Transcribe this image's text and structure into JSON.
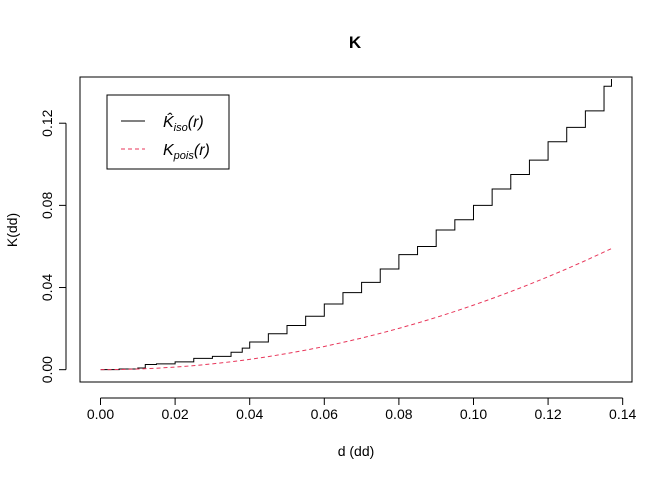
{
  "chart_data": {
    "type": "line",
    "title": "K",
    "xlabel": "d (dd)",
    "ylabel": "K(dd)",
    "xlim": [
      -0.0055,
      0.1425
    ],
    "ylim": [
      -0.006,
      0.1425
    ],
    "x_ticks": [
      0.0,
      0.02,
      0.04,
      0.06,
      0.08,
      0.1,
      0.12,
      0.14
    ],
    "x_tick_labels": [
      "0.00",
      "0.02",
      "0.04",
      "0.06",
      "0.08",
      "0.10",
      "0.12",
      "0.14"
    ],
    "y_ticks": [
      0.0,
      0.04,
      0.08,
      0.12
    ],
    "y_tick_labels": [
      "0.00",
      "0.04",
      "0.08",
      "0.12"
    ],
    "grid": false,
    "legend_position": "top-left",
    "series": [
      {
        "name": "K̂iso(r)",
        "legend_main": "K̂",
        "legend_sub": "iso",
        "legend_arg": "(r)",
        "style": "solid",
        "color": "#000000",
        "x": [
          0.0,
          0.005,
          0.01,
          0.012,
          0.015,
          0.02,
          0.025,
          0.03,
          0.035,
          0.038,
          0.04,
          0.045,
          0.05,
          0.055,
          0.06,
          0.065,
          0.07,
          0.075,
          0.08,
          0.085,
          0.09,
          0.095,
          0.1,
          0.105,
          0.11,
          0.115,
          0.12,
          0.125,
          0.13,
          0.135,
          0.137
        ],
        "y": [
          0.0,
          0.0003,
          0.0008,
          0.0025,
          0.0028,
          0.0038,
          0.0055,
          0.0065,
          0.0085,
          0.0105,
          0.0135,
          0.0175,
          0.0215,
          0.026,
          0.032,
          0.0375,
          0.0425,
          0.049,
          0.056,
          0.06,
          0.068,
          0.073,
          0.08,
          0.088,
          0.095,
          0.102,
          0.111,
          0.118,
          0.126,
          0.138,
          0.1415
        ]
      },
      {
        "name": "Kpois(r)",
        "legend_main": "K",
        "legend_sub": "pois",
        "legend_arg": "(r)",
        "style": "dashed",
        "color": "#e8365a",
        "x": [
          0.0,
          0.005,
          0.01,
          0.015,
          0.02,
          0.025,
          0.03,
          0.035,
          0.04,
          0.045,
          0.05,
          0.055,
          0.06,
          0.065,
          0.07,
          0.075,
          0.08,
          0.085,
          0.09,
          0.095,
          0.1,
          0.105,
          0.11,
          0.115,
          0.12,
          0.125,
          0.13,
          0.137
        ],
        "y": [
          0.0,
          8e-05,
          0.00031,
          0.00071,
          0.00126,
          0.00196,
          0.00283,
          0.00385,
          0.00503,
          0.00636,
          0.00785,
          0.0095,
          0.01131,
          0.01327,
          0.01539,
          0.01767,
          0.02011,
          0.0227,
          0.02545,
          0.02835,
          0.03142,
          0.03464,
          0.03801,
          0.04155,
          0.04524,
          0.04909,
          0.05309,
          0.05896
        ]
      }
    ]
  }
}
